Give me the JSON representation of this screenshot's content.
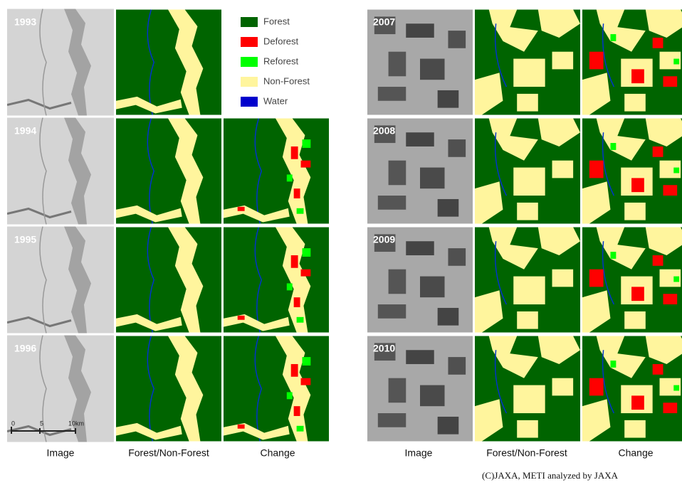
{
  "left_panel": {
    "years": [
      "1993",
      "1994",
      "1995",
      "1996"
    ],
    "column_labels": [
      "Image",
      "Forest/Non-Forest",
      "Change"
    ],
    "scale_bar": [
      "0",
      "5",
      "10km"
    ]
  },
  "legend": {
    "items": [
      {
        "label": "Forest",
        "color": "#006400"
      },
      {
        "label": "Deforest",
        "color": "#ff0000"
      },
      {
        "label": "Reforest",
        "color": "#00ff00"
      },
      {
        "label": "Non-Forest",
        "color": "#fff59d"
      },
      {
        "label": "Water",
        "color": "#0000cc"
      }
    ]
  },
  "right_panel": {
    "years": [
      "2007",
      "2008",
      "2009",
      "2010"
    ],
    "column_labels": [
      "Image",
      "Forest/Non-Forest",
      "Change"
    ]
  },
  "credit": "(C)JAXA, METI analyzed by JAXA"
}
